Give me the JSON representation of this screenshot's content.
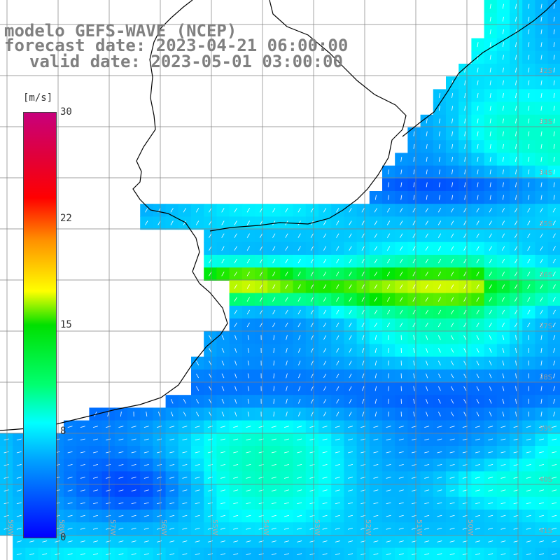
{
  "title": {
    "line1": "modelo GEFS-WAVE (NCEP)",
    "line2": "forecast date: 2023-04-21 06:00:00",
    "line3": "valid date: 2023-05-01 03:00:00"
  },
  "colorbar": {
    "unit": "[m/s]",
    "ticks": [
      "30",
      "22",
      "15",
      "8",
      "0"
    ],
    "range": [
      0,
      30
    ],
    "colors": [
      "#0000ff",
      "#00a0ff",
      "#00ffff",
      "#00ff70",
      "#00e000",
      "#ffff00",
      "#ff9000",
      "#ff0000",
      "#c8007c"
    ]
  },
  "grid": {
    "lat_labels": [
      "32S",
      "33S",
      "34S",
      "35S",
      "36S",
      "37S",
      "38S",
      "39S",
      "40S",
      "41S"
    ],
    "lon_labels": [
      "59W",
      "58W",
      "57W",
      "56W",
      "55W",
      "54W",
      "53W",
      "52W",
      "51W",
      "50W"
    ]
  },
  "colors": {
    "land": "#ffffff",
    "coast": "#000000",
    "gridline": "#808080",
    "arrow": "#ffffff"
  }
}
